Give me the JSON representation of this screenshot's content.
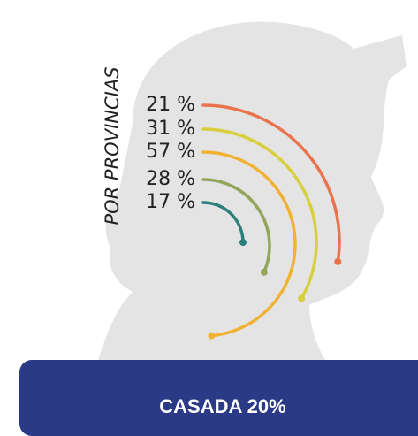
{
  "chart_data": {
    "type": "radial-arcs",
    "title": "POR PROVINCIAS",
    "values": [
      21,
      31,
      57,
      28,
      17
    ],
    "value_labels": [
      "21 %",
      "31 %",
      "57 %",
      "28 %",
      "17 %"
    ],
    "colors": [
      "#e8734c",
      "#d8cf3c",
      "#f1b233",
      "#93a55b",
      "#2b7f79"
    ],
    "footer": "CASADA 20%"
  }
}
